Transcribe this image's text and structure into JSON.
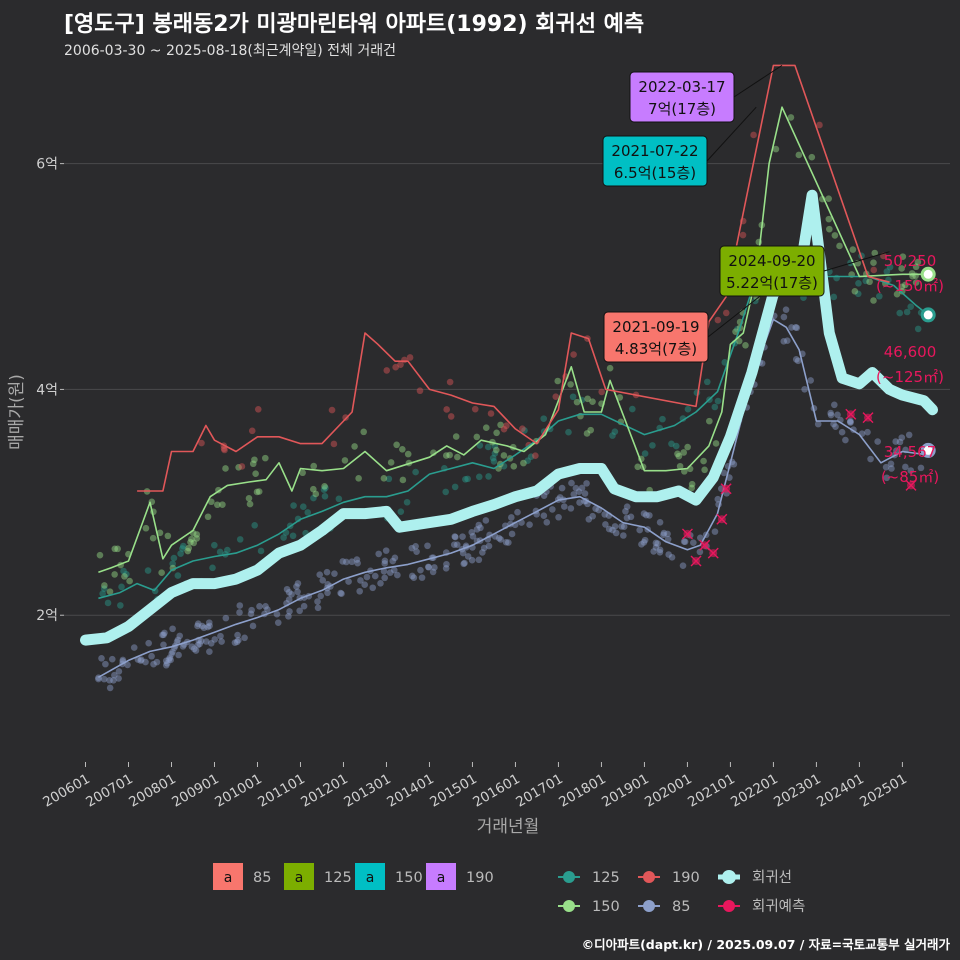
{
  "title": "[영도구] 봉래동2가 미광마린타워 아파트(1992) 회귀선 예측",
  "subtitle": "2006-03-30 ~ 2025-08-18(최근계약일) 전체 거래건",
  "footer": "©디아파트(dapt.kr) / 2025.09.07 / 자료=국토교통부 실거래가",
  "colors": {
    "bg": "#2b2b2d",
    "grid": "#4a4a4c",
    "s85": "#f8766d",
    "s125": "#7cae00",
    "s150": "#00bfc4",
    "s190": "#c77cff",
    "line85": "#8da0cb",
    "line125": "#2a9d8f",
    "line150": "#99e08a",
    "line190": "#e15759",
    "reg": "#aef0ee",
    "pred": "#e8175d"
  },
  "chart_data": {
    "type": "line",
    "xlabel": "거래년월",
    "ylabel": "매매가(원)",
    "x_ticks": [
      "200601",
      "200701",
      "200801",
      "200901",
      "201001",
      "201101",
      "201201",
      "201301",
      "201401",
      "201501",
      "201601",
      "201701",
      "201801",
      "201901",
      "202001",
      "202101",
      "202201",
      "202301",
      "202401",
      "202501"
    ],
    "y_ticks": [
      {
        "value": 2,
        "label": "2억"
      },
      {
        "value": 4,
        "label": "4억"
      },
      {
        "value": 6,
        "label": "6억"
      }
    ],
    "ylim": [
      0.7,
      6.9
    ],
    "xlim": [
      2005.5,
      2026.2
    ],
    "series": [
      {
        "name": "85",
        "type": "line",
        "color_key": "line85",
        "points": [
          [
            2006.3,
            1.45
          ],
          [
            2007.0,
            1.6
          ],
          [
            2007.5,
            1.68
          ],
          [
            2008.0,
            1.72
          ],
          [
            2008.5,
            1.78
          ],
          [
            2009.0,
            1.85
          ],
          [
            2009.5,
            1.92
          ],
          [
            2010.0,
            1.98
          ],
          [
            2010.5,
            2.05
          ],
          [
            2011.0,
            2.15
          ],
          [
            2011.5,
            2.22
          ],
          [
            2012.0,
            2.32
          ],
          [
            2012.5,
            2.38
          ],
          [
            2013.0,
            2.42
          ],
          [
            2013.5,
            2.45
          ],
          [
            2014.0,
            2.5
          ],
          [
            2014.5,
            2.55
          ],
          [
            2015.0,
            2.62
          ],
          [
            2015.5,
            2.72
          ],
          [
            2016.0,
            2.82
          ],
          [
            2016.5,
            2.92
          ],
          [
            2017.0,
            3.02
          ],
          [
            2017.5,
            3.05
          ],
          [
            2018.0,
            2.95
          ],
          [
            2018.5,
            2.82
          ],
          [
            2019.0,
            2.78
          ],
          [
            2019.5,
            2.65
          ],
          [
            2020.0,
            2.58
          ],
          [
            2020.3,
            2.62
          ],
          [
            2020.7,
            2.9
          ],
          [
            2021.0,
            3.35
          ],
          [
            2021.5,
            4.1
          ],
          [
            2022.0,
            4.62
          ],
          [
            2022.3,
            4.55
          ],
          [
            2022.6,
            4.35
          ],
          [
            2023.0,
            3.72
          ],
          [
            2023.5,
            3.72
          ],
          [
            2024.0,
            3.6
          ],
          [
            2024.5,
            3.35
          ],
          [
            2025.0,
            3.45
          ],
          [
            2025.6,
            3.42
          ]
        ]
      },
      {
        "name": "125",
        "type": "line",
        "color_key": "line125",
        "points": [
          [
            2006.3,
            2.15
          ],
          [
            2006.8,
            2.2
          ],
          [
            2007.2,
            2.28
          ],
          [
            2007.6,
            2.22
          ],
          [
            2008.0,
            2.4
          ],
          [
            2008.5,
            2.48
          ],
          [
            2009.0,
            2.52
          ],
          [
            2009.5,
            2.55
          ],
          [
            2010.0,
            2.62
          ],
          [
            2010.5,
            2.72
          ],
          [
            2011.0,
            2.85
          ],
          [
            2011.5,
            2.92
          ],
          [
            2012.0,
            3.0
          ],
          [
            2012.5,
            3.05
          ],
          [
            2013.0,
            3.05
          ],
          [
            2013.5,
            3.1
          ],
          [
            2014.0,
            3.25
          ],
          [
            2014.5,
            3.3
          ],
          [
            2015.0,
            3.35
          ],
          [
            2015.5,
            3.3
          ],
          [
            2016.0,
            3.42
          ],
          [
            2016.5,
            3.55
          ],
          [
            2017.0,
            3.72
          ],
          [
            2017.5,
            3.78
          ],
          [
            2018.0,
            3.78
          ],
          [
            2019.0,
            3.6
          ],
          [
            2019.7,
            3.68
          ],
          [
            2020.2,
            3.8
          ],
          [
            2020.7,
            3.98
          ],
          [
            2021.2,
            4.52
          ],
          [
            2021.6,
            5.0
          ],
          [
            2022.0,
            5.0
          ],
          [
            2023.0,
            5.0
          ],
          [
            2024.2,
            5.0
          ],
          [
            2024.8,
            4.92
          ],
          [
            2025.3,
            4.75
          ],
          [
            2025.6,
            4.66
          ]
        ]
      },
      {
        "name": "150",
        "type": "line",
        "color_key": "line150",
        "points": [
          [
            2006.3,
            2.38
          ],
          [
            2006.6,
            2.42
          ],
          [
            2007.0,
            2.48
          ],
          [
            2007.5,
            3.0
          ],
          [
            2007.8,
            2.5
          ],
          [
            2008.0,
            2.62
          ],
          [
            2008.5,
            2.75
          ],
          [
            2008.9,
            3.05
          ],
          [
            2009.3,
            3.15
          ],
          [
            2009.8,
            3.18
          ],
          [
            2010.2,
            3.2
          ],
          [
            2010.5,
            3.35
          ],
          [
            2010.8,
            3.1
          ],
          [
            2011.0,
            3.3
          ],
          [
            2011.5,
            3.28
          ],
          [
            2012.0,
            3.3
          ],
          [
            2012.5,
            3.45
          ],
          [
            2013.0,
            3.28
          ],
          [
            2014.0,
            3.4
          ],
          [
            2014.4,
            3.5
          ],
          [
            2014.8,
            3.42
          ],
          [
            2015.2,
            3.55
          ],
          [
            2015.8,
            3.5
          ],
          [
            2016.2,
            3.45
          ],
          [
            2016.7,
            3.6
          ],
          [
            2017.0,
            3.9
          ],
          [
            2017.3,
            4.2
          ],
          [
            2017.6,
            3.8
          ],
          [
            2018.0,
            3.8
          ],
          [
            2018.2,
            4.08
          ],
          [
            2019.0,
            3.28
          ],
          [
            2019.5,
            3.28
          ],
          [
            2020.0,
            3.3
          ],
          [
            2020.5,
            3.5
          ],
          [
            2020.8,
            3.8
          ],
          [
            2021.0,
            4.4
          ],
          [
            2021.3,
            4.5
          ],
          [
            2021.6,
            5.0
          ],
          [
            2021.9,
            6.0
          ],
          [
            2022.2,
            6.5
          ],
          [
            2024.0,
            5.0
          ],
          [
            2025.0,
            5.02
          ],
          [
            2025.6,
            5.02
          ]
        ]
      },
      {
        "name": "190",
        "type": "line",
        "color_key": "line190",
        "points": [
          [
            2007.2,
            3.1
          ],
          [
            2007.8,
            3.1
          ],
          [
            2008.0,
            3.45
          ],
          [
            2008.5,
            3.45
          ],
          [
            2008.8,
            3.68
          ],
          [
            2009.0,
            3.55
          ],
          [
            2009.5,
            3.45
          ],
          [
            2010.0,
            3.58
          ],
          [
            2010.5,
            3.58
          ],
          [
            2011.0,
            3.52
          ],
          [
            2011.5,
            3.52
          ],
          [
            2012.2,
            3.8
          ],
          [
            2012.5,
            4.5
          ],
          [
            2012.8,
            4.4
          ],
          [
            2013.2,
            4.25
          ],
          [
            2013.5,
            4.25
          ],
          [
            2014.0,
            4.0
          ],
          [
            2014.5,
            3.95
          ],
          [
            2015.0,
            3.88
          ],
          [
            2015.5,
            3.85
          ],
          [
            2016.0,
            3.65
          ],
          [
            2016.5,
            3.52
          ],
          [
            2017.0,
            3.82
          ],
          [
            2017.3,
            4.5
          ],
          [
            2017.7,
            4.45
          ],
          [
            2018.1,
            4.0
          ],
          [
            2020.2,
            3.85
          ],
          [
            2020.5,
            4.6
          ],
          [
            2020.9,
            4.82
          ],
          [
            2022.0,
            6.87
          ],
          [
            2022.5,
            6.87
          ],
          [
            2024.2,
            5.0
          ],
          [
            2024.7,
            4.95
          ]
        ]
      }
    ],
    "regression": {
      "name": "회귀선",
      "color_key": "reg",
      "points": [
        [
          2006.0,
          1.78
        ],
        [
          2006.5,
          1.8
        ],
        [
          2007.0,
          1.9
        ],
        [
          2007.5,
          2.05
        ],
        [
          2008.0,
          2.2
        ],
        [
          2008.5,
          2.28
        ],
        [
          2009.0,
          2.28
        ],
        [
          2009.5,
          2.32
        ],
        [
          2010.0,
          2.4
        ],
        [
          2010.5,
          2.55
        ],
        [
          2011.0,
          2.62
        ],
        [
          2011.5,
          2.75
        ],
        [
          2012.0,
          2.9
        ],
        [
          2012.5,
          2.9
        ],
        [
          2013.0,
          2.92
        ],
        [
          2013.3,
          2.78
        ],
        [
          2014.0,
          2.82
        ],
        [
          2014.5,
          2.85
        ],
        [
          2015.0,
          2.92
        ],
        [
          2015.5,
          2.98
        ],
        [
          2016.0,
          3.05
        ],
        [
          2016.5,
          3.1
        ],
        [
          2017.0,
          3.25
        ],
        [
          2017.5,
          3.3
        ],
        [
          2018.0,
          3.3
        ],
        [
          2018.3,
          3.12
        ],
        [
          2018.8,
          3.05
        ],
        [
          2019.3,
          3.05
        ],
        [
          2019.8,
          3.1
        ],
        [
          2020.2,
          3.02
        ],
        [
          2020.6,
          3.22
        ],
        [
          2021.0,
          3.58
        ],
        [
          2021.5,
          4.15
        ],
        [
          2022.0,
          4.85
        ],
        [
          2022.6,
          5.0
        ],
        [
          2022.9,
          5.72
        ],
        [
          2023.3,
          4.5
        ],
        [
          2023.6,
          4.1
        ],
        [
          2024.0,
          4.05
        ],
        [
          2024.3,
          4.15
        ],
        [
          2024.7,
          4.0
        ],
        [
          2025.0,
          3.95
        ],
        [
          2025.5,
          3.9
        ],
        [
          2025.7,
          3.82
        ]
      ]
    },
    "regression_forecast": {
      "name": "회귀예측",
      "color_key": "pred",
      "points": [
        [
          2020.0,
          2.72
        ],
        [
          2020.2,
          2.48
        ],
        [
          2020.4,
          2.62
        ],
        [
          2020.6,
          2.55
        ],
        [
          2020.8,
          2.85
        ],
        [
          2020.9,
          3.12
        ],
        [
          2023.8,
          3.78
        ],
        [
          2024.2,
          3.75
        ],
        [
          2025.2,
          3.15
        ]
      ]
    },
    "annotations": [
      {
        "date": "2022-03-17",
        "price": "7억(17층)",
        "x": 2022.2,
        "y": 6.87,
        "color_key": "s190"
      },
      {
        "date": "2021-07-22",
        "price": "6.5억(15층)",
        "x": 2021.6,
        "y": 6.5,
        "color_key": "s150"
      },
      {
        "date": "2024-09-20",
        "price": "5.22억(17층)",
        "x": 2024.7,
        "y": 5.22,
        "color_key": "s125"
      },
      {
        "date": "2021-09-19",
        "price": "4.83억(7층)",
        "x": 2021.7,
        "y": 4.83,
        "color_key": "s85"
      }
    ],
    "end_labels": [
      {
        "value": "50,250",
        "area": "(~150㎡)",
        "y": 5.02
      },
      {
        "value": "46,600",
        "area": "(~125㎡)",
        "y": 4.66
      },
      {
        "value": "34,567",
        "area": "(~85㎡)",
        "y": 3.46
      }
    ],
    "legend_area": [
      {
        "label": "85",
        "color_key": "s85"
      },
      {
        "label": "125",
        "color_key": "s125"
      },
      {
        "label": "150",
        "color_key": "s150"
      },
      {
        "label": "190",
        "color_key": "s190"
      }
    ],
    "legend_area_letter": "a",
    "legend_lines": [
      {
        "label": "125",
        "color_key": "line125"
      },
      {
        "label": "190",
        "color_key": "line190"
      },
      {
        "label": "회귀선",
        "color_key": "reg"
      },
      {
        "label": "150",
        "color_key": "line150"
      },
      {
        "label": "85",
        "color_key": "line85"
      },
      {
        "label": "회귀예측",
        "color_key": "pred"
      }
    ]
  }
}
